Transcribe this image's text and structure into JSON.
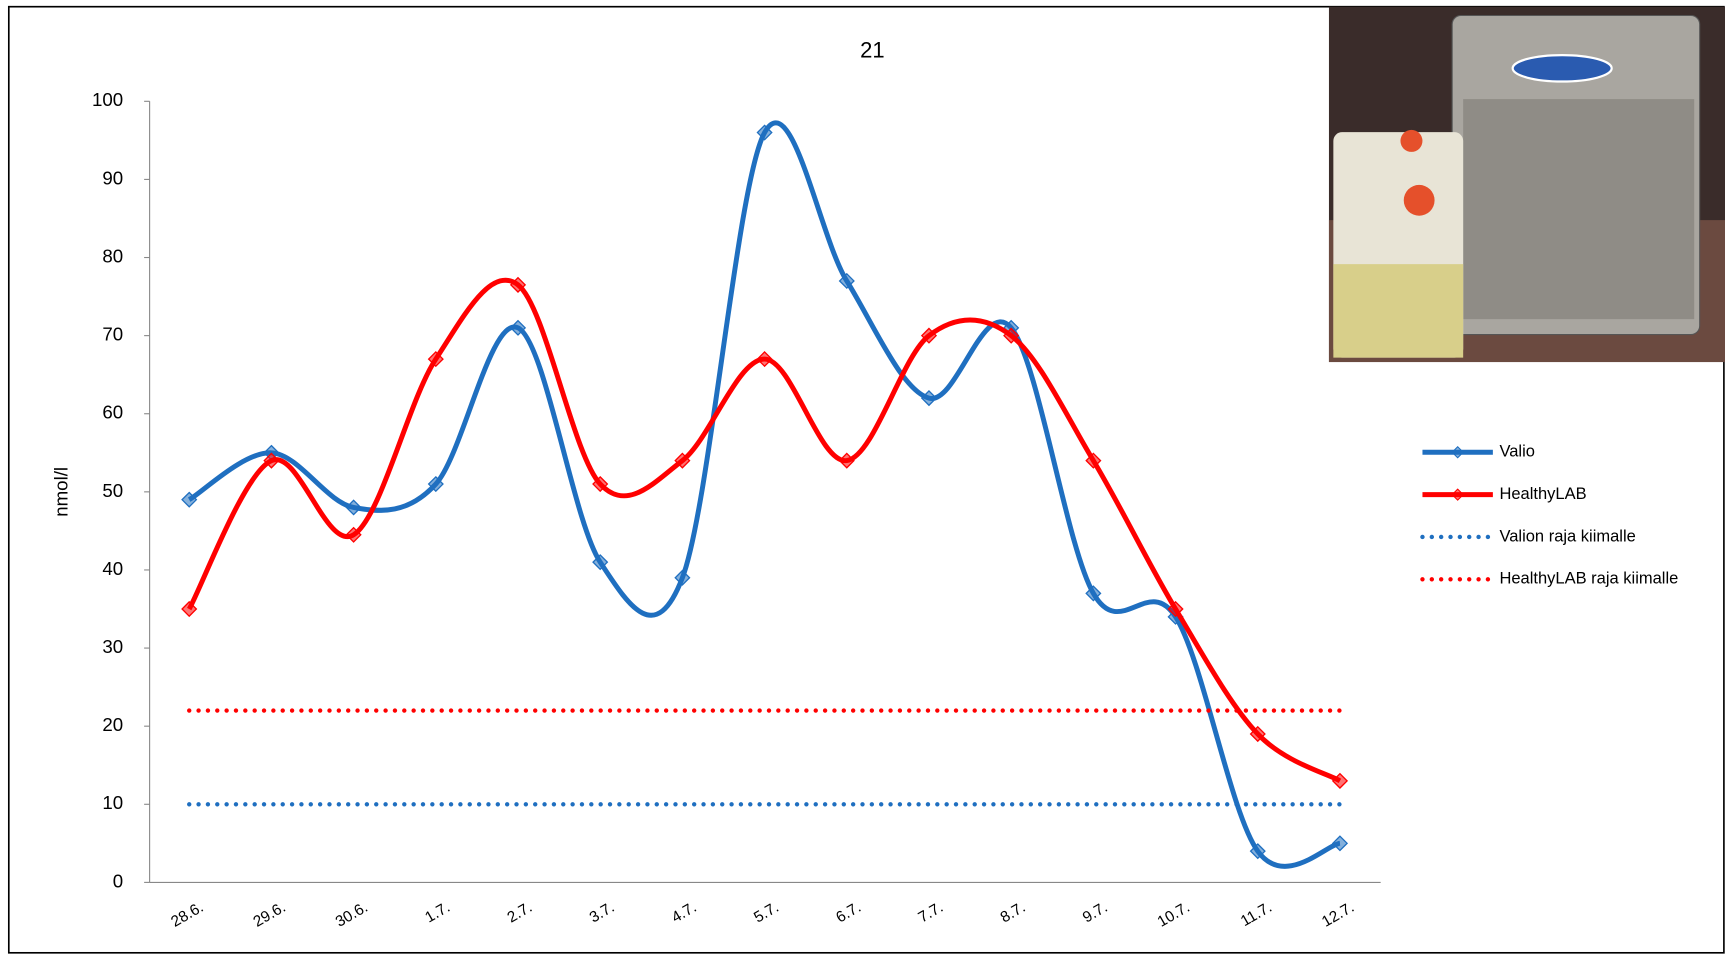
{
  "chart_data": {
    "type": "line",
    "title": "21",
    "y_label": "nmol/l",
    "categories": [
      "28.6.",
      "29.6.",
      "30.6.",
      "1.7.",
      "2.7.",
      "3.7.",
      "4.7.",
      "5.7.",
      "6.7.",
      "7.7.",
      "8.7.",
      "9.7.",
      "10.7.",
      "11.7.",
      "12.7."
    ],
    "series": [
      {
        "name": "Valio",
        "color": "#1f6fc0",
        "marker": "diamond",
        "dotted": false,
        "smooth": true,
        "values": [
          49,
          55,
          48,
          51,
          71,
          41,
          39,
          96,
          77,
          62,
          71,
          37,
          34,
          4,
          5
        ]
      },
      {
        "name": "HealthyLAB",
        "color": "#ff0000",
        "marker": "diamond",
        "dotted": false,
        "smooth": true,
        "values": [
          35,
          54,
          44.5,
          67,
          76.5,
          51,
          54,
          67,
          54,
          70,
          70,
          54,
          35,
          19,
          13
        ]
      },
      {
        "name": "Valion raja kiimalle",
        "color": "#1f6fc0",
        "marker": null,
        "dotted": true,
        "smooth": false,
        "values": [
          10,
          10,
          10,
          10,
          10,
          10,
          10,
          10,
          10,
          10,
          10,
          10,
          10,
          10,
          10
        ]
      },
      {
        "name": "HealthyLAB raja kiimalle",
        "color": "#ff0000",
        "marker": null,
        "dotted": true,
        "smooth": false,
        "values": [
          22,
          22,
          22,
          22,
          22,
          22,
          22,
          22,
          22,
          22,
          22,
          22,
          22,
          22,
          22
        ]
      }
    ],
    "ylim": [
      0,
      100
    ],
    "yticks": [
      0,
      10,
      20,
      30,
      40,
      50,
      60,
      70,
      80,
      90,
      100
    ],
    "grid": false,
    "legend": "right"
  }
}
